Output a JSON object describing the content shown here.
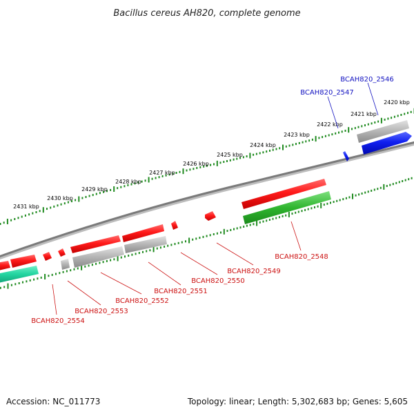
{
  "title": "Bacillus cereus AH820, complete genome",
  "footer": {
    "accession": "Accession: NC_011773",
    "topology": "Topology: linear; Length: 5,302,683 bp; Genes: 5,605"
  },
  "colors": {
    "forward_gene": "#0a1fe0",
    "reverse_gene": "#e8141a",
    "forward_label": "#1010c0",
    "reverse_label": "#cc1111",
    "gray_feature": "#a8a8a8",
    "green_feature": "#2eaa2e",
    "teal_feature": "#22d4a0",
    "ticks": "#1f8a1f",
    "axis": "#7a7a7a"
  },
  "scale_ticks": [
    "2431 kbp",
    "2430 kbp",
    "2429 kbp",
    "2428 kbp",
    "2427 kbp",
    "2426 kbp",
    "2425 kbp",
    "2424 kbp",
    "2423 kbp",
    "2422 kbp",
    "2421 kbp",
    "2420 kbp"
  ],
  "gene_labels": [
    {
      "name": "BCAH820_2546",
      "strand": "forward"
    },
    {
      "name": "BCAH820_2547",
      "strand": "forward"
    },
    {
      "name": "BCAH820_2548",
      "strand": "reverse"
    },
    {
      "name": "BCAH820_2549",
      "strand": "reverse"
    },
    {
      "name": "BCAH820_2550",
      "strand": "reverse"
    },
    {
      "name": "BCAH820_2551",
      "strand": "reverse"
    },
    {
      "name": "BCAH820_2552",
      "strand": "reverse"
    },
    {
      "name": "BCAH820_2553",
      "strand": "reverse"
    },
    {
      "name": "BCAH820_2554",
      "strand": "reverse"
    }
  ]
}
